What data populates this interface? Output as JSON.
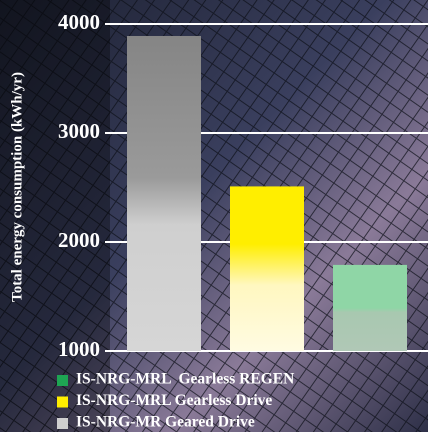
{
  "chart_data": {
    "type": "bar",
    "y_label": "Total energy consumption (kWh/yr)",
    "series": [
      {
        "name": "IS-NRG-MR Geared Drive",
        "color": "#cfcfcf",
        "values": [
          3890
        ]
      },
      {
        "name": "IS-NRG-MRL Gearless Drive",
        "color": "#ffee00",
        "values": [
          2510
        ]
      },
      {
        "name": "IS-NRG-MRL  Gearless REGEN",
        "color": "#1ea553",
        "values": [
          1790
        ]
      }
    ],
    "ylim": [
      1000,
      4000
    ],
    "yticks": [
      1000,
      2000,
      3000,
      4000
    ],
    "grid": true
  }
}
